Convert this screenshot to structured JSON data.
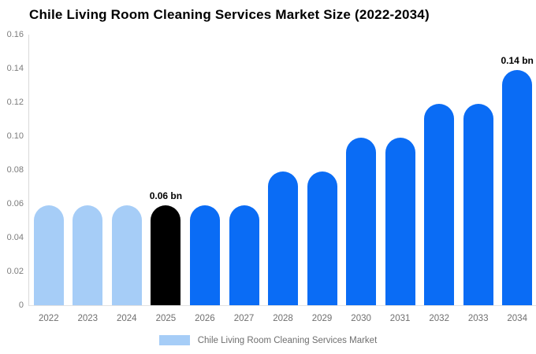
{
  "chart_data": {
    "type": "bar",
    "title": "Chile Living Room Cleaning Services Market Size (2022-2034)",
    "categories": [
      "2022",
      "2023",
      "2024",
      "2025",
      "2026",
      "2027",
      "2028",
      "2029",
      "2030",
      "2031",
      "2032",
      "2033",
      "2034"
    ],
    "values": [
      0.059,
      0.059,
      0.059,
      0.059,
      0.059,
      0.059,
      0.079,
      0.079,
      0.099,
      0.099,
      0.119,
      0.119,
      0.139
    ],
    "unit": "bn",
    "xlabel": "",
    "ylabel": "",
    "ylim": [
      0,
      0.16
    ],
    "yticks": [
      0,
      0.02,
      0.04,
      0.06,
      0.08,
      0.1,
      0.12,
      0.14,
      0.16
    ],
    "ytick_labels": [
      "0",
      "0.02",
      "0.04",
      "0.06",
      "0.08",
      "0.10",
      "0.12",
      "0.14",
      "0.16"
    ],
    "grid": false,
    "legend_position": "bottom-center",
    "bar_colors": [
      "#a6cdf7",
      "#a6cdf7",
      "#a6cdf7",
      "#000000",
      "#0a6cf5",
      "#0a6cf5",
      "#0a6cf5",
      "#0a6cf5",
      "#0a6cf5",
      "#0a6cf5",
      "#0a6cf5",
      "#0a6cf5",
      "#0a6cf5"
    ],
    "annotations": [
      {
        "category": "2025",
        "text": "0.06 bn"
      },
      {
        "category": "2034",
        "text": "0.14 bn"
      }
    ]
  },
  "legend": {
    "label": "Chile Living Room Cleaning Services Market",
    "swatch_color": "#a6cdf7"
  },
  "colors": {
    "series_blue": "#0a6cf5",
    "series_light_blue": "#a6cdf7",
    "highlight_black": "#000000",
    "axis_text": "#6f6f6f",
    "axis_line": "#d9d9d9"
  }
}
